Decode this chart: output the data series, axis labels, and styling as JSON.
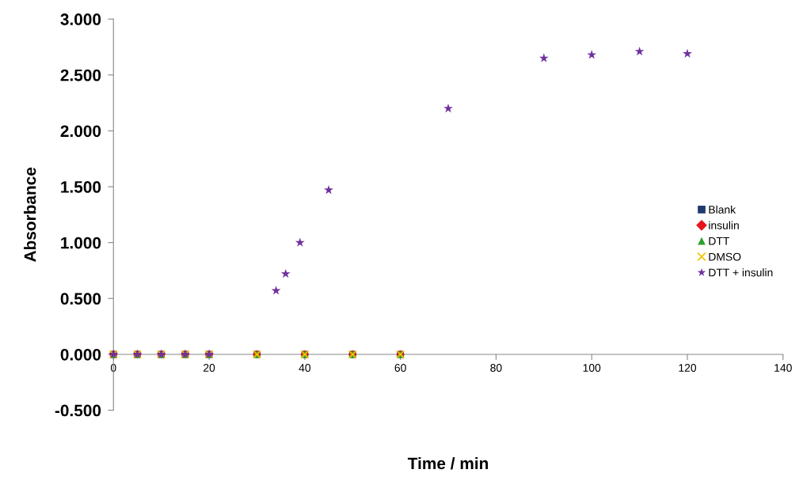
{
  "chart_data": {
    "type": "scatter",
    "xlabel": "Time / min",
    "ylabel": "Absorbance",
    "xlim": [
      0,
      140
    ],
    "xticks": [
      0,
      20,
      40,
      60,
      80,
      100,
      120,
      140
    ],
    "ylim": [
      -0.5,
      3.0
    ],
    "yticks": [
      {
        "value": -0.5,
        "label": "-0.500"
      },
      {
        "value": 0,
        "label": "0.000"
      },
      {
        "value": 0.5,
        "label": "0.500"
      },
      {
        "value": 1.0,
        "label": "1.000"
      },
      {
        "value": 1.5,
        "label": "1.500"
      },
      {
        "value": 2.0,
        "label": "2.000"
      },
      {
        "value": 2.5,
        "label": "2.500"
      },
      {
        "value": 3.0,
        "label": "3.000"
      }
    ],
    "grid": false,
    "legend": "right",
    "series": [
      {
        "name": "Blank",
        "color": "#1f3a6e",
        "marker": "square",
        "x": [
          0,
          5,
          10,
          15,
          20,
          30,
          40,
          50,
          60
        ],
        "values": [
          0,
          0,
          0,
          0,
          0,
          0,
          0,
          0,
          0
        ]
      },
      {
        "name": "insulin",
        "color": "#e8141c",
        "marker": "diamond",
        "x": [
          0,
          5,
          10,
          15,
          20,
          30,
          40,
          50,
          60
        ],
        "values": [
          0,
          0,
          0,
          0,
          0,
          0,
          0,
          0,
          0
        ]
      },
      {
        "name": "DTT",
        "color": "#2ca02c",
        "marker": "triangle",
        "x": [
          0,
          5,
          10,
          15,
          20,
          30,
          40,
          50,
          60
        ],
        "values": [
          0,
          0,
          0,
          0,
          0,
          0,
          0,
          0,
          0
        ]
      },
      {
        "name": "DMSO",
        "color": "#f5c400",
        "marker": "cross",
        "x": [
          0,
          5,
          10,
          15,
          20,
          30,
          40,
          50,
          60
        ],
        "values": [
          0,
          0,
          0,
          0,
          0,
          0,
          0,
          0,
          0
        ]
      },
      {
        "name": "DTT + insulin",
        "color": "#7030a0",
        "marker": "star",
        "x": [
          0,
          5,
          10,
          15,
          20,
          34,
          36,
          39,
          45,
          70,
          90,
          100,
          110,
          120
        ],
        "values": [
          0,
          0,
          0,
          0,
          0,
          0.57,
          0.72,
          1.0,
          1.47,
          2.2,
          2.65,
          2.68,
          2.71,
          2.69
        ]
      }
    ]
  }
}
